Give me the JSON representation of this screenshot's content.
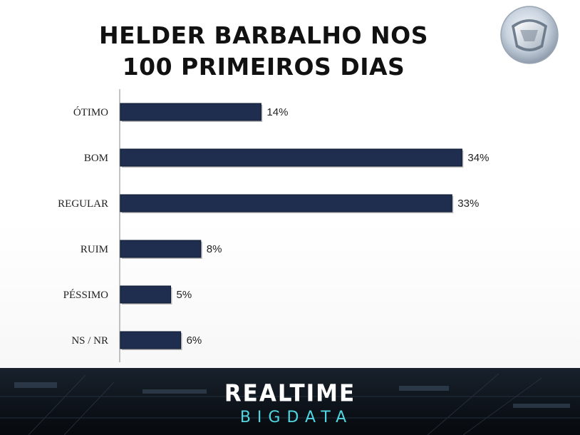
{
  "title": {
    "line1": "HELDER BARBALHO NOS",
    "line2": "100 PRIMEIROS DIAS"
  },
  "brand": {
    "top": "REALTIME",
    "bottom": "BIGDATA",
    "accent_color": "#4fd6e0"
  },
  "colors": {
    "bar_fill": "#1f2d4e",
    "bar_edge": "#0f1a33",
    "axis": "#888888",
    "footer_bg": "#0b1016"
  },
  "chart_data": {
    "type": "bar",
    "orientation": "horizontal",
    "title": "HELDER BARBALHO NOS 100 PRIMEIROS DIAS",
    "categories": [
      "ÓTIMO",
      "BOM",
      "REGULAR",
      "RUIM",
      "PÉSSIMO",
      "NS / NR"
    ],
    "values": [
      14,
      34,
      33,
      8,
      5,
      6
    ],
    "value_labels": [
      "14%",
      "34%",
      "33%",
      "8%",
      "5%",
      "6%"
    ],
    "xlim": [
      0,
      40
    ],
    "grid": false,
    "legend": "none"
  }
}
